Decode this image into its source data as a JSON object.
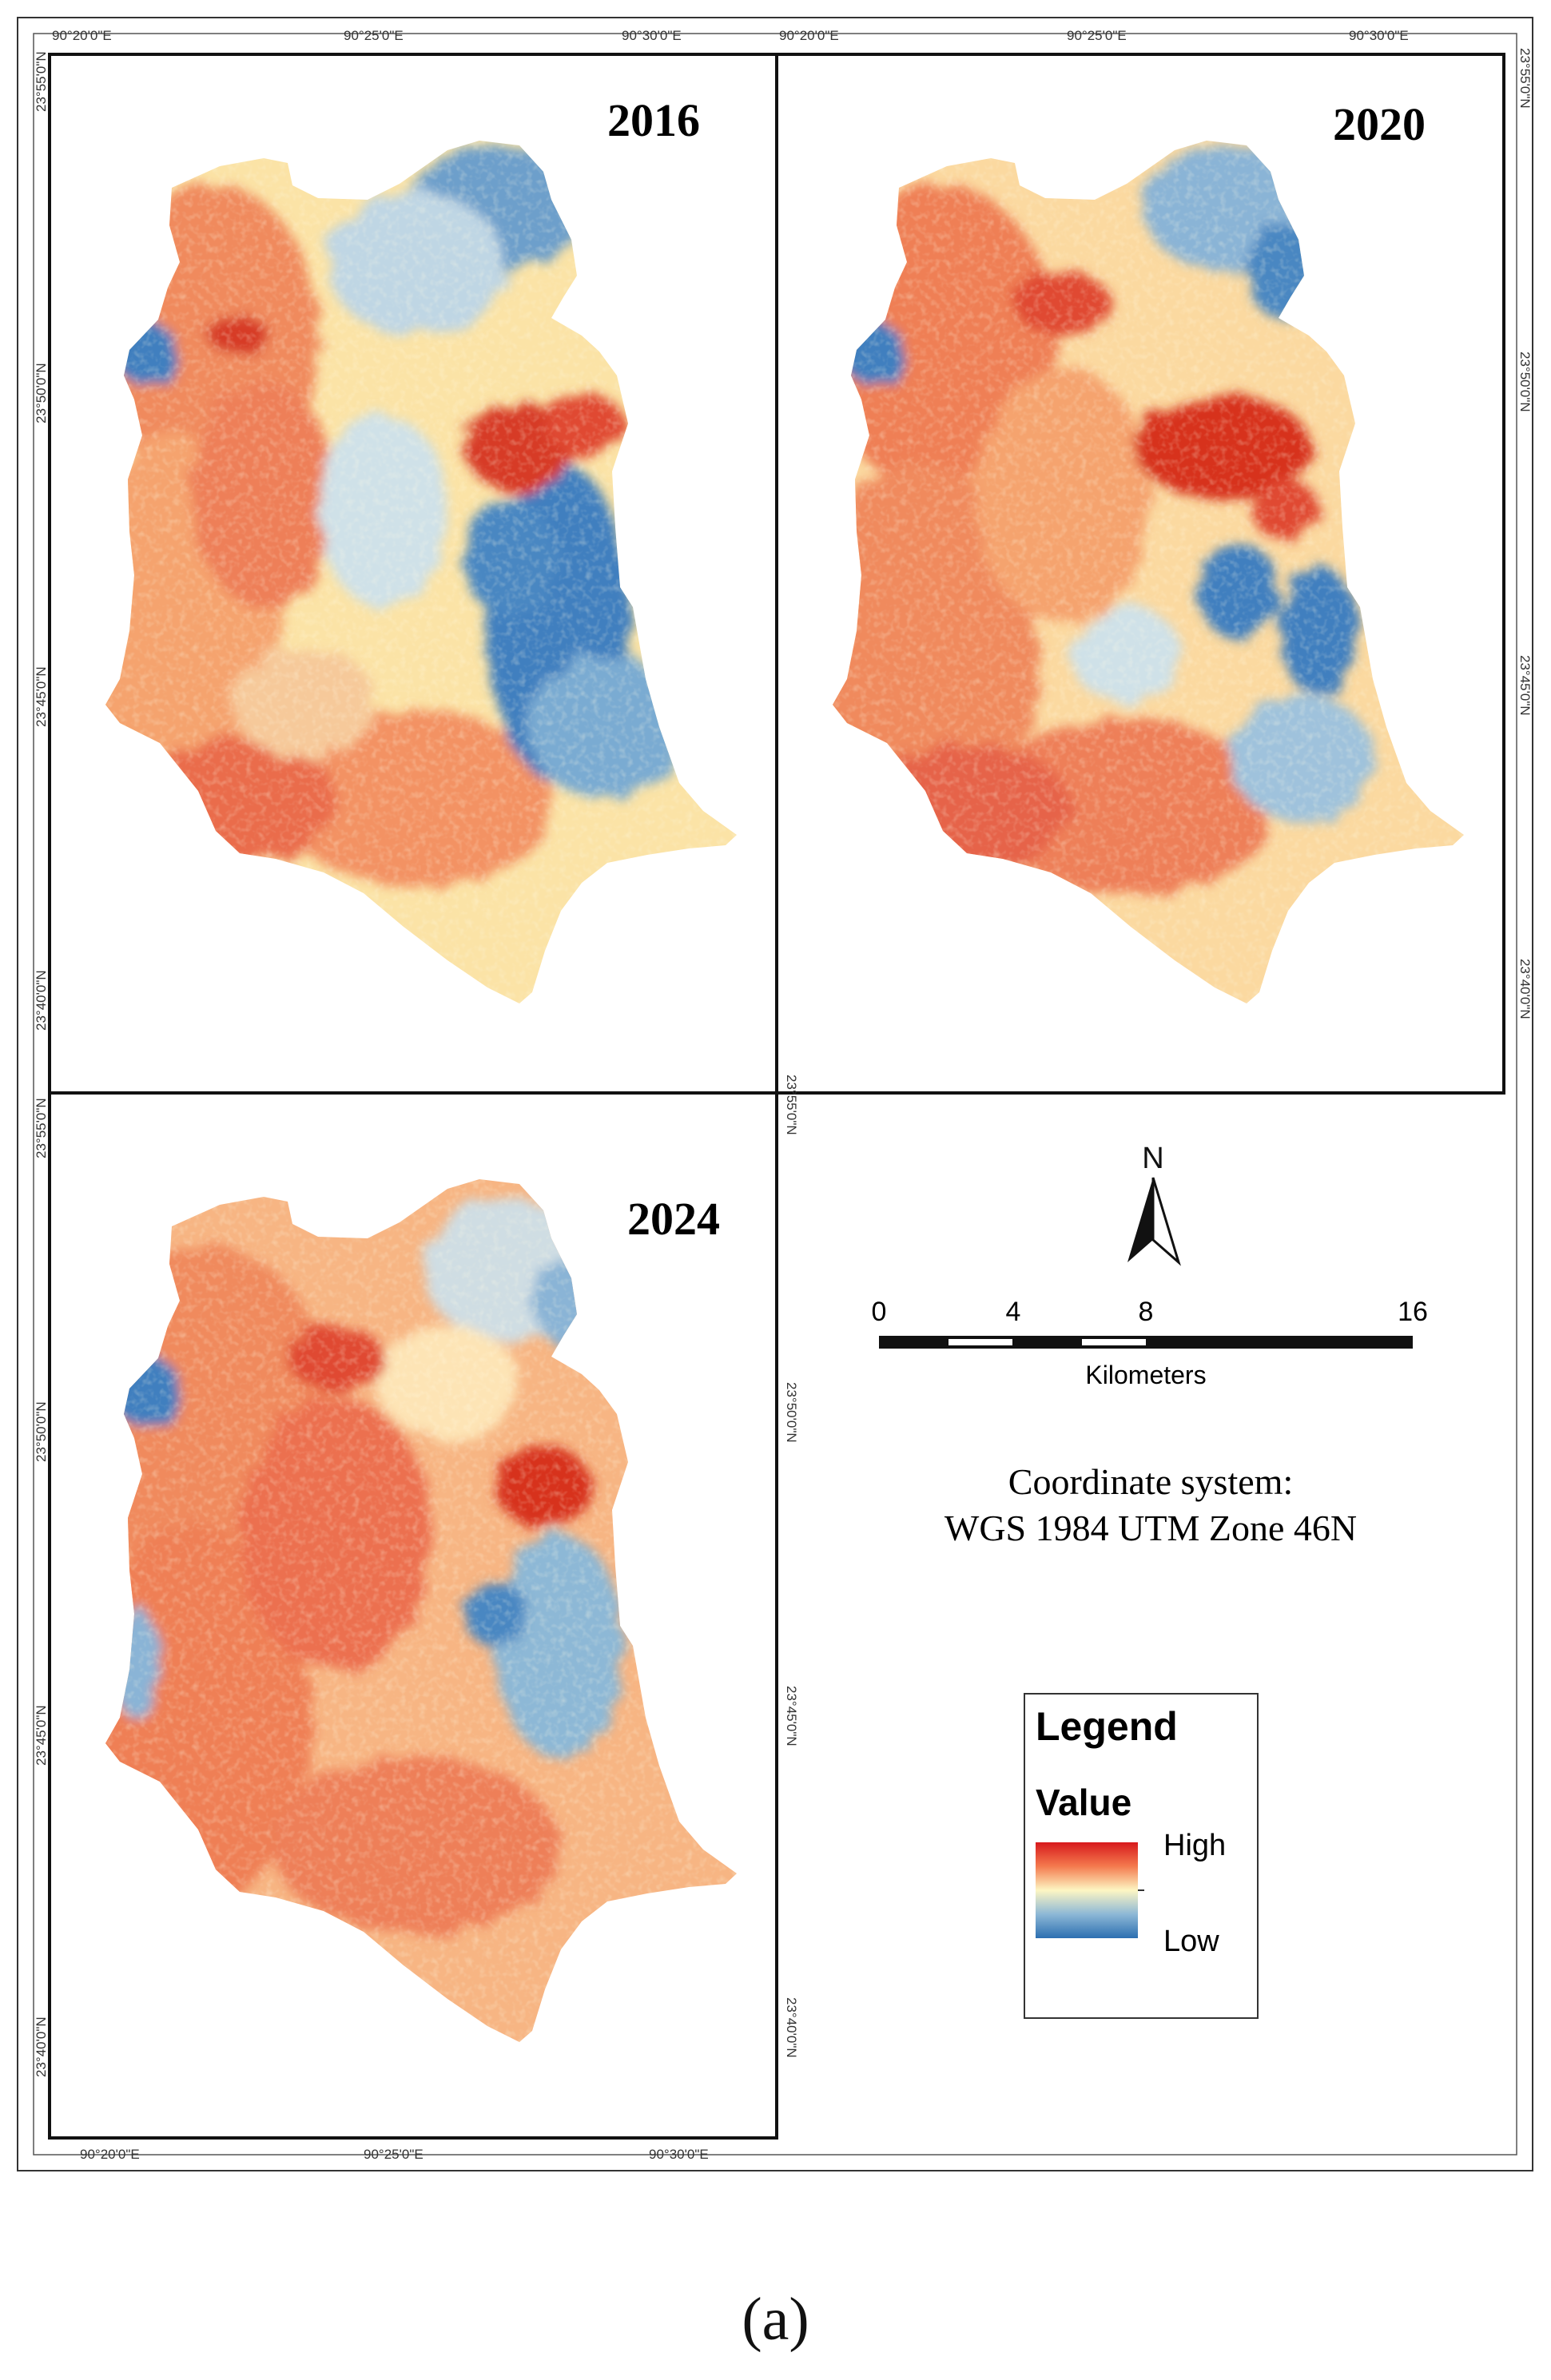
{
  "panels": [
    {
      "year": "2016",
      "lon_ticks": [
        "90°20'0\"E",
        "90°25'0\"E",
        "90°30'0\"E"
      ],
      "lat_ticks": [
        "23°55'0\"N",
        "23°50'0\"N",
        "23°45'0\"N",
        "23°40'0\"N"
      ]
    },
    {
      "year": "2020",
      "lon_ticks": [
        "90°20'0\"E",
        "90°25'0\"E",
        "90°30'0\"E"
      ],
      "lat_ticks": [
        "23°55'0\"N",
        "23°50'0\"N",
        "23°45'0\"N",
        "23°40'0\"N"
      ]
    },
    {
      "year": "2024",
      "lon_ticks": [
        "90°20'0\"E",
        "90°25'0\"E",
        "90°30'0\"E"
      ],
      "lat_ticks": [
        "23°55'0\"N",
        "23°50'0\"N",
        "23°45'0\"N",
        "23°40'0\"N"
      ]
    }
  ],
  "north_arrow": {
    "label": "N"
  },
  "scale_bar": {
    "ticks": [
      "0",
      "4",
      "8",
      "16"
    ],
    "unit": "Kilometers"
  },
  "coordinate_system": {
    "line1": "Coordinate system:",
    "line2": "WGS 1984 UTM Zone 46N"
  },
  "legend": {
    "title": "Legend",
    "subtitle": "Value",
    "high": "High",
    "low": "Low",
    "colors": {
      "high": "#e0392a",
      "mid": "#fdf6c3",
      "low": "#3f7fbf"
    }
  },
  "caption": "(a)"
}
